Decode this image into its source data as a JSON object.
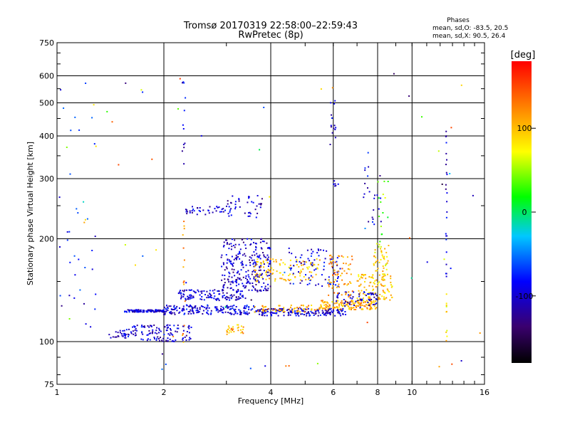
{
  "chart_data": {
    "type": "scatter",
    "title": "Tromsø 20170319 22:58:00–22:59:43",
    "subtitle": "RwPretec (8p)",
    "xlabel": "Frequency [MHz]",
    "ylabel": "Stationary phase Virtual Height [km]",
    "x_scale": "log",
    "y_scale": "log",
    "xlim": [
      1,
      16
    ],
    "ylim": [
      75,
      750
    ],
    "x_ticks": [
      1,
      2,
      4,
      6,
      8,
      10,
      16
    ],
    "y_ticks": [
      75,
      100,
      200,
      300,
      400,
      500,
      600,
      750
    ],
    "grid": true,
    "stats": {
      "heading": "Phases",
      "line1": "mean, sd,O: -83.5, 20.5",
      "line2": "mean, sd,X:  90.5, 26.4"
    },
    "colorbar": {
      "label": "[deg]",
      "range": [
        -180,
        180
      ],
      "ticks": [
        100,
        0,
        -100
      ],
      "colormap": "rainbow"
    },
    "point_groups": [
      {
        "x": [
          1.55,
          2.0
        ],
        "y": [
          122,
          124
        ],
        "n": 120,
        "phase": -100
      },
      {
        "x": [
          2.0,
          3.6
        ],
        "y": [
          120,
          128
        ],
        "n": 180,
        "phase": -95
      },
      {
        "x": [
          3.6,
          6.5
        ],
        "y": [
          119,
          125
        ],
        "n": 180,
        "phase": -100
      },
      {
        "x": [
          3.6,
          5.5
        ],
        "y": [
          122,
          128
        ],
        "n": 60,
        "phase": 110
      },
      {
        "x": [
          5.5,
          8.0
        ],
        "y": [
          124,
          132
        ],
        "n": 150,
        "phase": 110
      },
      {
        "x": [
          7.0,
          8.8
        ],
        "y": [
          132,
          158
        ],
        "n": 110,
        "phase": 95
      },
      {
        "x": [
          6.0,
          8.0
        ],
        "y": [
          126,
          140
        ],
        "n": 60,
        "phase": -100
      },
      {
        "x": [
          1.55,
          2.4
        ],
        "y": [
          100,
          112
        ],
        "n": 120,
        "phase": -100
      },
      {
        "x": [
          1.4,
          1.6
        ],
        "y": [
          102,
          108
        ],
        "n": 25,
        "phase": -105
      },
      {
        "x": [
          2.2,
          3.4
        ],
        "y": [
          132,
          142
        ],
        "n": 120,
        "phase": -100
      },
      {
        "x": [
          2.9,
          4.0
        ],
        "y": [
          140,
          200
        ],
        "n": 260,
        "phase": -105
      },
      {
        "x": [
          3.6,
          5.5
        ],
        "y": [
          150,
          175
        ],
        "n": 110,
        "phase": 100
      },
      {
        "x": [
          4.5,
          6.3
        ],
        "y": [
          145,
          190
        ],
        "n": 80,
        "phase": -95
      },
      {
        "x": [
          5.8,
          6.8
        ],
        "y": [
          135,
          180
        ],
        "n": 70,
        "phase": 115
      },
      {
        "x": [
          7.8,
          8.6
        ],
        "y": [
          160,
          195
        ],
        "n": 40,
        "phase": 90
      },
      {
        "x": [
          2.3,
          3.1
        ],
        "y": [
          235,
          250
        ],
        "n": 40,
        "phase": -100
      },
      {
        "x": [
          3.0,
          3.8
        ],
        "y": [
          230,
          270
        ],
        "n": 40,
        "phase": -105
      },
      {
        "x": [
          3.0,
          3.35
        ],
        "y": [
          105,
          112
        ],
        "n": 28,
        "phase": 105
      },
      {
        "x": [
          5.9,
          6.1
        ],
        "y": [
          390,
          510
        ],
        "n": 14,
        "phase": -105
      },
      {
        "x": [
          6.0,
          6.2
        ],
        "y": [
          280,
          300
        ],
        "n": 6,
        "phase": -110
      },
      {
        "x": [
          7.3,
          8.2
        ],
        "y": [
          220,
          330
        ],
        "n": 22,
        "phase": -100
      },
      {
        "x": [
          8.0,
          9.0
        ],
        "y": [
          180,
          300
        ],
        "n": 14,
        "phase": 40
      },
      {
        "x": [
          12.45,
          12.55
        ],
        "y": [
          140,
          420
        ],
        "n": 24,
        "phase": -100
      },
      {
        "x": [
          12.45,
          12.55
        ],
        "y": [
          100,
          140
        ],
        "n": 10,
        "phase": 90
      },
      {
        "x": [
          1.0,
          1.3
        ],
        "y": [
          100,
          500
        ],
        "n": 30,
        "phase": -80
      },
      {
        "x": [
          2.25,
          2.3
        ],
        "y": [
          320,
          600
        ],
        "n": 12,
        "phase": -100
      },
      {
        "x": [
          2.25,
          2.3
        ],
        "y": [
          90,
          230
        ],
        "n": 14,
        "phase": 120
      },
      {
        "x": [
          1.0,
          16.0
        ],
        "y": [
          80,
          620
        ],
        "n": 70,
        "phase": 0
      }
    ]
  }
}
